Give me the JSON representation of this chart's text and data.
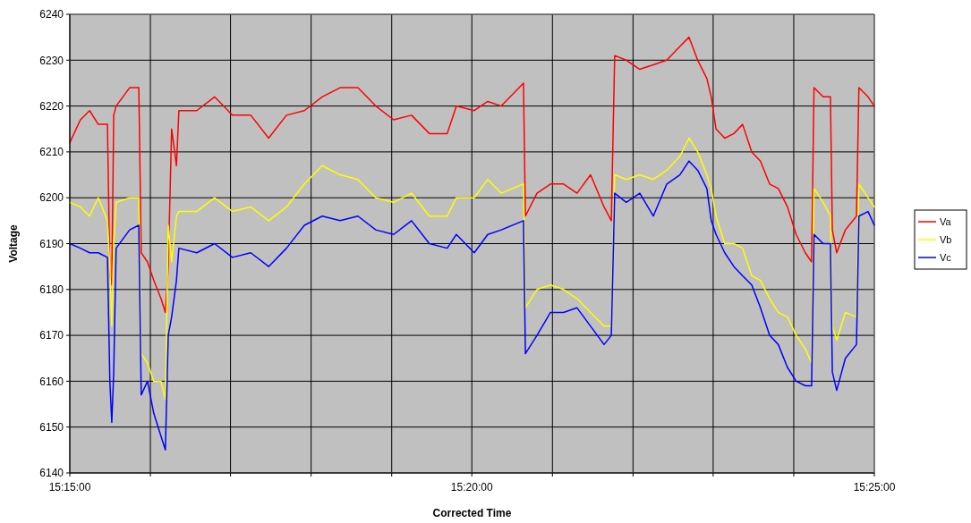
{
  "chart_data": {
    "type": "line",
    "xlabel": "Corrected Time",
    "ylabel": "Voltage",
    "x": [
      15.25,
      15.2522,
      15.2541,
      15.2559,
      15.2578,
      15.2583,
      15.2587,
      15.2591,
      15.2596,
      15.2624,
      15.2643,
      15.2648,
      15.2661,
      15.2674,
      15.2689,
      15.2698,
      15.2704,
      15.2711,
      15.2721,
      15.2726,
      15.2763,
      15.28,
      15.2837,
      15.2875,
      15.2912,
      15.2949,
      15.2986,
      15.3023,
      15.306,
      15.3097,
      15.3134,
      15.3171,
      15.3208,
      15.3245,
      15.3282,
      15.3301,
      15.3338,
      15.3366,
      15.3394,
      15.344,
      15.3444,
      15.3468,
      15.3496,
      15.3523,
      15.3551,
      15.3579,
      15.3607,
      15.3622,
      15.3629,
      15.3653,
      15.3681,
      15.3709,
      15.3737,
      15.3764,
      15.3783,
      15.3801,
      15.382,
      15.3829,
      15.3839,
      15.3857,
      15.3876,
      15.3894,
      15.3913,
      15.3931,
      15.395,
      15.3968,
      15.3987,
      15.4005,
      15.4024,
      15.4037,
      15.4042,
      15.4061,
      15.4076,
      15.408,
      15.4089,
      15.4107,
      15.413,
      15.4135,
      15.4154,
      15.4167
    ],
    "series": [
      {
        "name": "Va",
        "color": "#ff0000",
        "values": [
          6212,
          6217,
          6219,
          6216,
          6216,
          6183,
          6181,
          6218,
          6220,
          6224,
          6224,
          6188,
          6186,
          6182,
          6178,
          6175,
          6185,
          6215,
          6207,
          6219,
          6219,
          6222,
          6218,
          6218,
          6213,
          6218,
          6219,
          6222,
          6224,
          6224,
          6220,
          6217,
          6218,
          6214,
          6214,
          6220,
          6219,
          6221,
          6220,
          6225,
          6196,
          6201,
          6203,
          6203,
          6201,
          6205,
          6198,
          6195,
          6231,
          6230,
          6228,
          6229,
          6230,
          6233,
          6235,
          6230,
          6226,
          6222,
          6215,
          6213,
          6214,
          6216,
          6210,
          6208,
          6203,
          6202,
          6198,
          6192,
          6188,
          6186,
          6224,
          6222,
          6222,
          6193,
          6188,
          6193,
          6196,
          6224,
          6222,
          6220
        ]
      },
      {
        "name": "Vb",
        "color": "#ffff00",
        "values": [
          6199,
          6198,
          6196,
          6200,
          6195,
          6185,
          6172,
          6190,
          6199,
          6200,
          6200,
          6166,
          6164,
          6160,
          6160,
          6156,
          6194,
          6186,
          6196,
          6197,
          6197,
          6200,
          6197,
          6198,
          6195,
          6198,
          6203,
          6207,
          6205,
          6204,
          6200,
          6199,
          6201,
          6196,
          6196,
          6200,
          6200,
          6204,
          6201,
          6203,
          6176,
          6180,
          6181,
          6180,
          6178,
          6175,
          6172,
          6172,
          6205,
          6204,
          6205,
          6204,
          6206,
          6209,
          6213,
          6210,
          6205,
          6202,
          6196,
          6190,
          6190,
          6189,
          6183,
          6182,
          6178,
          6175,
          6174,
          6170,
          6167,
          6164,
          6202,
          6199,
          6196,
          6172,
          6169,
          6175,
          6174,
          6203,
          6200,
          6198
        ]
      },
      {
        "name": "Vc",
        "color": "#0000ff",
        "values": [
          6190,
          6189,
          6188,
          6188,
          6187,
          6160,
          6151,
          6162,
          6189,
          6193,
          6194,
          6157,
          6160,
          6153,
          6148,
          6145,
          6170,
          6174,
          6182,
          6189,
          6188,
          6190,
          6187,
          6188,
          6185,
          6189,
          6194,
          6196,
          6195,
          6196,
          6193,
          6192,
          6195,
          6190,
          6189,
          6192,
          6188,
          6192,
          6193,
          6195,
          6166,
          6170,
          6175,
          6175,
          6176,
          6172,
          6168,
          6170,
          6201,
          6199,
          6201,
          6196,
          6203,
          6205,
          6208,
          6206,
          6202,
          6195,
          6192,
          6188,
          6185,
          6183,
          6181,
          6176,
          6170,
          6168,
          6163,
          6160,
          6159,
          6159,
          6192,
          6190,
          6190,
          6162,
          6158,
          6165,
          6168,
          6196,
          6197,
          6194
        ]
      }
    ],
    "xlim": [
      15.25,
      15.4167
    ],
    "xticks": [
      {
        "value": 15.25,
        "label": "15:15:00"
      },
      {
        "value": 15.2667,
        "label": null
      },
      {
        "value": 15.2833,
        "label": null
      },
      {
        "value": 15.3,
        "label": null
      },
      {
        "value": 15.3167,
        "label": null
      },
      {
        "value": 15.3333,
        "label": "15:20:00"
      },
      {
        "value": 15.35,
        "label": null
      },
      {
        "value": 15.3667,
        "label": null
      },
      {
        "value": 15.3833,
        "label": null
      },
      {
        "value": 15.4,
        "label": null
      },
      {
        "value": 15.4167,
        "label": "15:25:00"
      }
    ],
    "ylim": [
      6140,
      6240
    ],
    "yticks": [
      6140,
      6150,
      6160,
      6170,
      6180,
      6190,
      6200,
      6210,
      6220,
      6230,
      6240
    ],
    "grid": true,
    "legend": "right",
    "marker": "none",
    "line_style": "solid"
  }
}
